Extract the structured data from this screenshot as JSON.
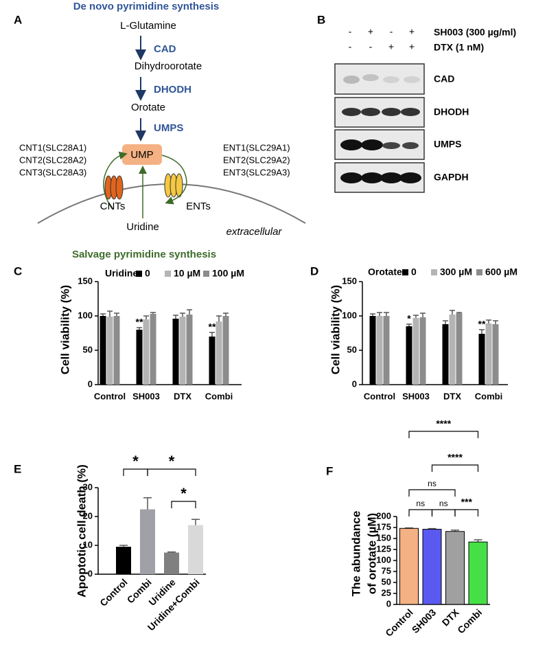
{
  "panel_labels": [
    "A",
    "B",
    "C",
    "D",
    "E",
    "F"
  ],
  "diagram": {
    "title": "De novo pyrimidine synthesis",
    "steps": [
      "L-Glutamine",
      "Dihydroorotate",
      "Orotate"
    ],
    "enzymes": [
      "CAD",
      "DHODH",
      "UMPS"
    ],
    "product": "UMP",
    "left_transporters": [
      "CNT1(SLC28A1)",
      "CNT2(SLC28A2)",
      "CNT3(SLC28A3)"
    ],
    "right_transporters": [
      "ENT1(SLC29A1)",
      "ENT2(SLC29A2)",
      "ENT3(SLC29A3)"
    ],
    "cnts": "CNTs",
    "ents": "ENTs",
    "uridine": "Uridine",
    "extracellular": "extracellular",
    "salvage": "Salvage pyrimidine synthesis"
  },
  "blot": {
    "treatments": [
      {
        "name": "SH003 (300 µg/ml)",
        "signs": [
          "-",
          "+",
          "-",
          "+"
        ]
      },
      {
        "name": "DTX (1 nM)",
        "signs": [
          "-",
          "-",
          "+",
          "+"
        ]
      }
    ],
    "bands": [
      "CAD",
      "DHODH",
      "UMPS",
      "GAPDH"
    ]
  },
  "chart_data": [
    {
      "type": "bar",
      "categories": [
        "Control",
        "SH003",
        "DTX",
        "Combi"
      ],
      "legend_title": "Uridine",
      "ylabel": "Cell viability (%)",
      "ylim": [
        0,
        150
      ],
      "yticks": [
        0,
        50,
        100,
        150
      ],
      "series": [
        {
          "name": "0",
          "color": "#000000",
          "values": [
            100,
            80,
            96,
            70
          ],
          "error": [
            3,
            3,
            5,
            6
          ]
        },
        {
          "name": "10 µM",
          "color": "#b4b4b4",
          "values": [
            99,
            95,
            99,
            92
          ],
          "error": [
            8,
            5,
            5,
            8
          ]
        },
        {
          "name": "100 µM",
          "color": "#8c8c8c",
          "values": [
            100,
            103,
            102,
            100
          ],
          "error": [
            4,
            2,
            7,
            4
          ]
        }
      ],
      "annotations": [
        {
          "category": "SH003",
          "series": "0",
          "label": "**"
        },
        {
          "category": "Combi",
          "series": "0",
          "label": "**"
        }
      ]
    },
    {
      "type": "bar",
      "categories": [
        "Control",
        "SH003",
        "DTX",
        "Combi"
      ],
      "legend_title": "Orotate",
      "ylabel": "Cell viability (%)",
      "ylim": [
        0,
        150
      ],
      "yticks": [
        0,
        50,
        100,
        150
      ],
      "series": [
        {
          "name": "0",
          "color": "#000000",
          "values": [
            100,
            85,
            88,
            74
          ],
          "error": [
            3,
            3,
            5,
            6
          ]
        },
        {
          "name": "300 µM",
          "color": "#b4b4b4",
          "values": [
            100,
            97,
            102,
            89
          ],
          "error": [
            5,
            4,
            6,
            5
          ]
        },
        {
          "name": "600 µM",
          "color": "#8c8c8c",
          "values": [
            100,
            98,
            104,
            88
          ],
          "error": [
            5,
            6,
            1,
            5
          ]
        }
      ],
      "annotations": [
        {
          "category": "SH003",
          "series": "0",
          "label": "*"
        },
        {
          "category": "Combi",
          "series": "0",
          "label": "**"
        }
      ]
    },
    {
      "type": "bar",
      "categories": [
        "Control",
        "Combi",
        "Uridine",
        "Uridine+Combi"
      ],
      "colors": [
        "#000000",
        "#a0a0a8",
        "#808080",
        "#d9d9d9"
      ],
      "values": [
        9.5,
        22.5,
        7.5,
        17
      ],
      "error": [
        0.5,
        4,
        0.2,
        2
      ],
      "ylabel": "Apoptotic cell death (%)",
      "ylim": [
        0,
        30
      ],
      "yticks": [
        0,
        10,
        20,
        30
      ],
      "comparisons": [
        {
          "pair": [
            "Control",
            "Combi"
          ],
          "label": "*"
        },
        {
          "pair": [
            "Combi",
            "Uridine+Combi"
          ],
          "label": "*"
        },
        {
          "pair": [
            "Uridine",
            "Uridine+Combi"
          ],
          "label": "*"
        }
      ]
    },
    {
      "type": "bar",
      "categories": [
        "Control",
        "SH003",
        "DTX",
        "Combi"
      ],
      "colors": [
        "#f4b183",
        "#5a5af0",
        "#a0a0a0",
        "#46e046"
      ],
      "values": [
        173,
        171,
        166,
        142
      ],
      "error": [
        1,
        1.5,
        3,
        5
      ],
      "ylabel": [
        "The abundance",
        "of orotate (µM)"
      ],
      "ylim": [
        0,
        200
      ],
      "yticks": [
        0,
        25,
        50,
        75,
        100,
        125,
        150,
        175,
        200
      ],
      "comparisons": [
        {
          "pair": [
            "Control",
            "SH003"
          ],
          "label": "ns"
        },
        {
          "pair": [
            "SH003",
            "DTX"
          ],
          "label": "ns"
        },
        {
          "pair": [
            "DTX",
            "Combi"
          ],
          "label": "***"
        },
        {
          "pair": [
            "Control",
            "DTX"
          ],
          "label": "ns"
        },
        {
          "pair": [
            "SH003",
            "Combi"
          ],
          "label": "****"
        },
        {
          "pair": [
            "Control",
            "Combi"
          ],
          "label": "****"
        }
      ]
    }
  ]
}
